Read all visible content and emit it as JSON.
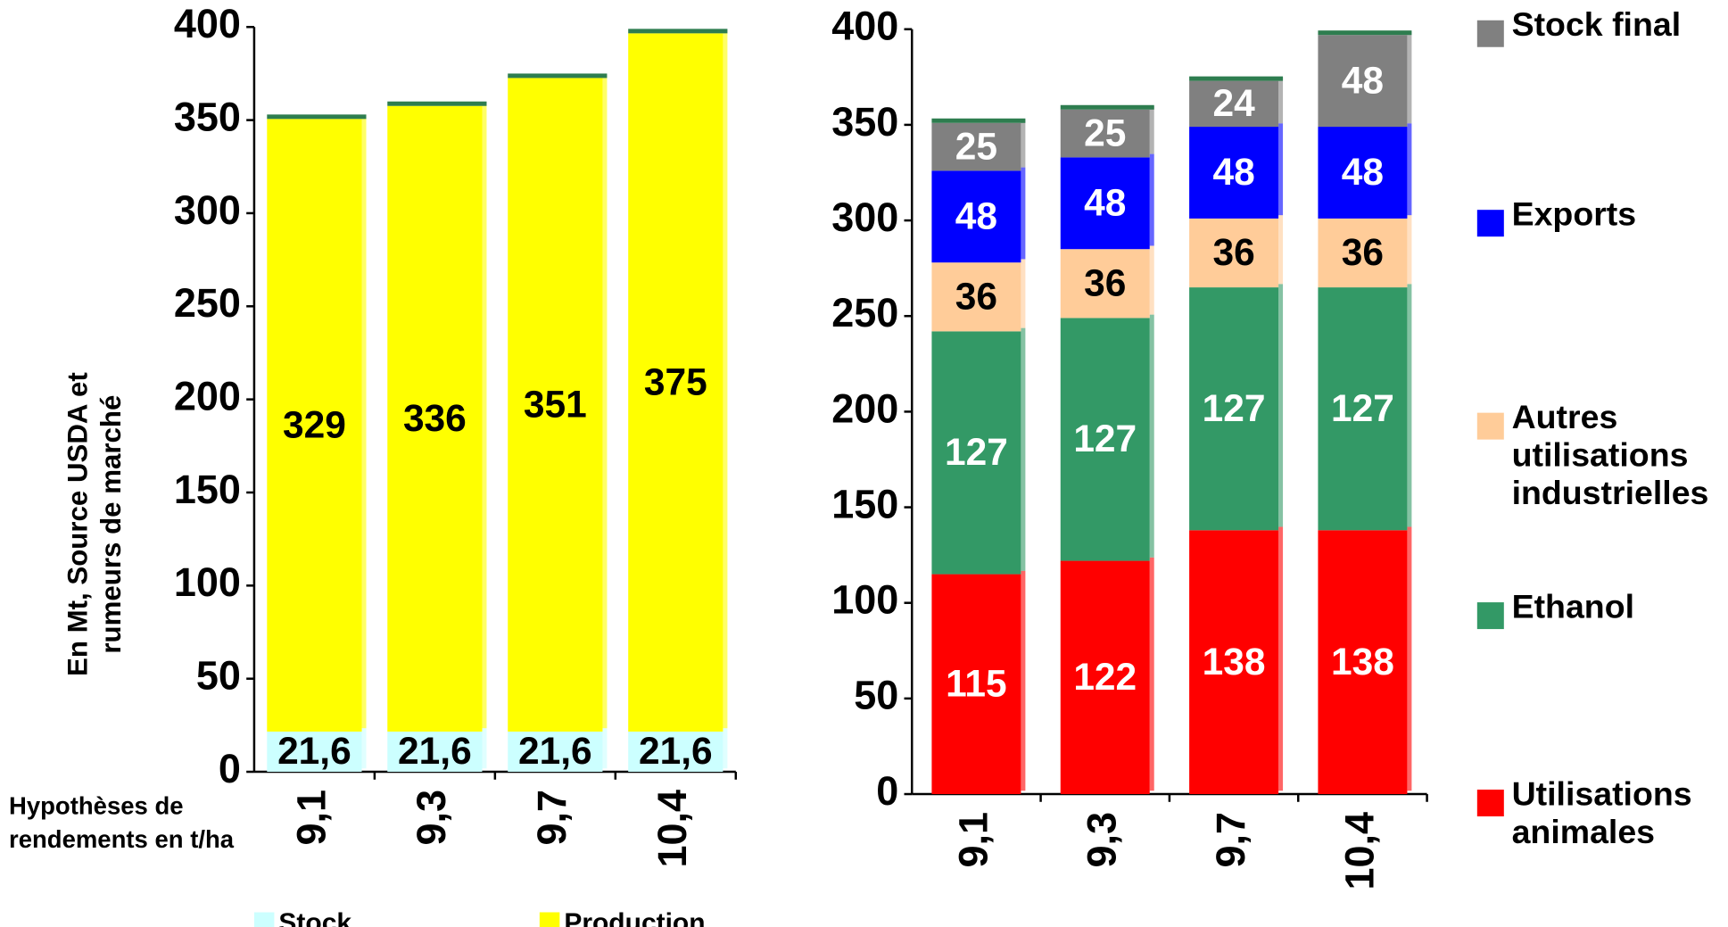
{
  "chart_data": [
    {
      "type": "stacked_bar",
      "categories": [
        "9,1",
        "9,3",
        "9,7",
        "10,4"
      ],
      "ylabel": "En Mt, Source USDA et rumeurs de marché",
      "xlabel": "Hypothèses de rendements en t/ha",
      "ylim": [
        0,
        400
      ],
      "yticks": [
        0,
        50,
        100,
        150,
        200,
        250,
        300,
        350,
        400
      ],
      "series": [
        {
          "name": "Stock",
          "color": "#ccffff",
          "label_color": "#000000",
          "values": [
            21.6,
            21.6,
            21.6,
            21.6
          ],
          "value_labels": [
            "21,6",
            "21,6",
            "21,6",
            "21,6"
          ]
        },
        {
          "name": "Production",
          "color": "#ffff00",
          "label_color": "#000000",
          "values": [
            329,
            336,
            351,
            375
          ]
        }
      ],
      "legend": "bottom"
    },
    {
      "type": "stacked_bar",
      "categories": [
        "9,1",
        "9,3",
        "9,7",
        "10,4"
      ],
      "ylim": [
        0,
        400
      ],
      "yticks": [
        0,
        50,
        100,
        150,
        200,
        250,
        300,
        350,
        400
      ],
      "series": [
        {
          "name": "Utilisations animales",
          "color": "#ff0000",
          "label_color": "#ffffff",
          "values": [
            115,
            122,
            138,
            138
          ]
        },
        {
          "name": "Ethanol",
          "color": "#339966",
          "label_color": "#ffffff",
          "values": [
            127,
            127,
            127,
            127
          ]
        },
        {
          "name": "Autres utilisations industrielles",
          "color": "#ffcc99",
          "label_color": "#000000",
          "values": [
            36,
            36,
            36,
            36
          ]
        },
        {
          "name": "Exports",
          "color": "#0000ff",
          "label_color": "#ffffff",
          "values": [
            48,
            48,
            48,
            48
          ]
        },
        {
          "name": "Stock final",
          "color": "#808080",
          "label_color": "#ffffff",
          "values": [
            25,
            25,
            24,
            48
          ]
        }
      ],
      "legend": "right"
    }
  ]
}
